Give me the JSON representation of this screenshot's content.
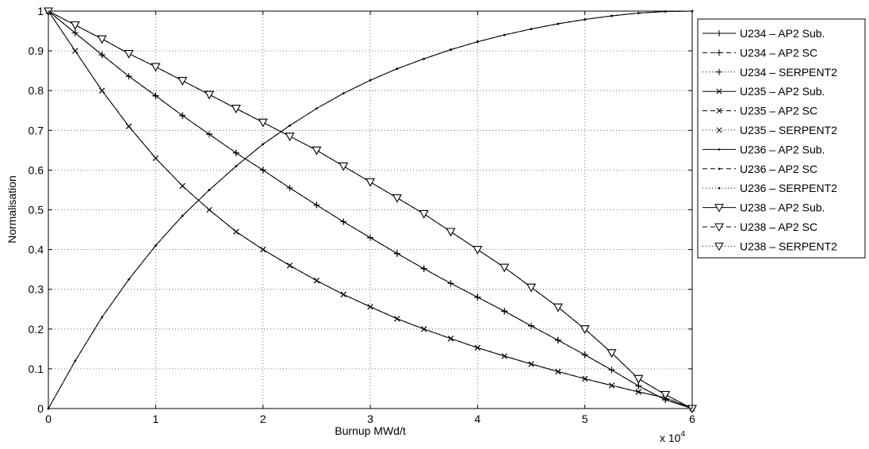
{
  "chart_data": {
    "type": "line",
    "title": "",
    "xlabel": "Burnup MWd/t",
    "ylabel": "Normalisation",
    "x_multiplier": "x 10",
    "x_multiplier_exp": "4",
    "xlim": [
      0,
      60000
    ],
    "ylim": [
      0,
      1
    ],
    "grid": true,
    "legend": "outside-right",
    "x_ticks": [
      0,
      10000,
      20000,
      30000,
      40000,
      50000,
      60000
    ],
    "x_tick_labels": [
      "0",
      "1",
      "2",
      "3",
      "4",
      "5",
      "6"
    ],
    "y_ticks": [
      0,
      0.1,
      0.2,
      0.3,
      0.4,
      0.5,
      0.6,
      0.7,
      0.8,
      0.9,
      1
    ],
    "y_tick_labels": [
      "0",
      "0.1",
      "0.2",
      "0.3",
      "0.4",
      "0.5",
      "0.6",
      "0.7",
      "0.8",
      "0.9",
      "1"
    ],
    "x": [
      0,
      2500,
      5000,
      7500,
      10000,
      12500,
      15000,
      17500,
      20000,
      22500,
      25000,
      27500,
      30000,
      32500,
      35000,
      37500,
      40000,
      42500,
      45000,
      47500,
      50000,
      52500,
      55000,
      57500,
      60000
    ],
    "series": [
      {
        "name": "U234 – AP2 Sub.",
        "marker": "plus",
        "dash": "solid",
        "values": [
          1.0,
          0.945,
          0.89,
          0.836,
          0.787,
          0.737,
          0.69,
          0.643,
          0.6,
          0.555,
          0.512,
          0.47,
          0.43,
          0.39,
          0.352,
          0.315,
          0.28,
          0.245,
          0.208,
          0.172,
          0.135,
          0.097,
          0.057,
          0.022,
          0.0
        ]
      },
      {
        "name": "U234 – AP2 SC",
        "marker": "plus",
        "dash": "dashed",
        "values": [
          1.0,
          0.945,
          0.89,
          0.836,
          0.787,
          0.737,
          0.69,
          0.643,
          0.6,
          0.555,
          0.512,
          0.47,
          0.43,
          0.39,
          0.352,
          0.315,
          0.28,
          0.245,
          0.208,
          0.172,
          0.135,
          0.097,
          0.057,
          0.022,
          0.0
        ]
      },
      {
        "name": "U234 – SERPENT2",
        "marker": "plus",
        "dash": "dotted",
        "values": [
          1.0,
          0.945,
          0.89,
          0.836,
          0.787,
          0.737,
          0.69,
          0.643,
          0.6,
          0.555,
          0.512,
          0.47,
          0.43,
          0.39,
          0.352,
          0.315,
          0.28,
          0.245,
          0.208,
          0.172,
          0.135,
          0.097,
          0.057,
          0.022,
          0.0
        ]
      },
      {
        "name": "U235 – AP2 Sub.",
        "marker": "x",
        "dash": "solid",
        "values": [
          1.0,
          0.9,
          0.8,
          0.71,
          0.63,
          0.56,
          0.5,
          0.445,
          0.4,
          0.36,
          0.322,
          0.287,
          0.256,
          0.226,
          0.2,
          0.176,
          0.153,
          0.132,
          0.112,
          0.093,
          0.075,
          0.058,
          0.042,
          0.027,
          0.0
        ]
      },
      {
        "name": "U235 – AP2 SC",
        "marker": "x",
        "dash": "dashed",
        "values": [
          1.0,
          0.9,
          0.8,
          0.71,
          0.63,
          0.56,
          0.5,
          0.445,
          0.4,
          0.36,
          0.322,
          0.287,
          0.256,
          0.226,
          0.2,
          0.176,
          0.153,
          0.132,
          0.112,
          0.093,
          0.075,
          0.058,
          0.042,
          0.027,
          0.0
        ]
      },
      {
        "name": "U235 – SERPENT2",
        "marker": "x",
        "dash": "dotted",
        "values": [
          1.0,
          0.9,
          0.8,
          0.71,
          0.63,
          0.56,
          0.5,
          0.445,
          0.4,
          0.36,
          0.322,
          0.287,
          0.256,
          0.226,
          0.2,
          0.176,
          0.153,
          0.132,
          0.112,
          0.093,
          0.075,
          0.058,
          0.042,
          0.027,
          0.0
        ]
      },
      {
        "name": "U236 – AP2 Sub.",
        "marker": "dot",
        "dash": "solid",
        "values": [
          0.0,
          0.12,
          0.23,
          0.325,
          0.41,
          0.485,
          0.55,
          0.61,
          0.665,
          0.712,
          0.755,
          0.793,
          0.826,
          0.855,
          0.88,
          0.903,
          0.923,
          0.94,
          0.955,
          0.968,
          0.979,
          0.988,
          0.995,
          0.999,
          1.0
        ]
      },
      {
        "name": "U236 – AP2 SC",
        "marker": "dot",
        "dash": "dashed",
        "values": [
          0.0,
          0.12,
          0.23,
          0.325,
          0.41,
          0.485,
          0.55,
          0.61,
          0.665,
          0.712,
          0.755,
          0.793,
          0.826,
          0.855,
          0.88,
          0.903,
          0.923,
          0.94,
          0.955,
          0.968,
          0.979,
          0.988,
          0.995,
          0.999,
          1.0
        ]
      },
      {
        "name": "U236 – SERPENT2",
        "marker": "dot",
        "dash": "dotted",
        "values": [
          0.0,
          0.12,
          0.23,
          0.325,
          0.41,
          0.485,
          0.55,
          0.61,
          0.665,
          0.712,
          0.755,
          0.793,
          0.826,
          0.855,
          0.88,
          0.903,
          0.923,
          0.94,
          0.955,
          0.968,
          0.979,
          0.988,
          0.995,
          0.999,
          1.0
        ]
      },
      {
        "name": "U238 – AP2 Sub.",
        "marker": "triangle-down",
        "dash": "solid",
        "values": [
          1.0,
          0.965,
          0.93,
          0.893,
          0.86,
          0.825,
          0.79,
          0.755,
          0.72,
          0.685,
          0.65,
          0.61,
          0.57,
          0.53,
          0.49,
          0.445,
          0.4,
          0.355,
          0.305,
          0.255,
          0.2,
          0.14,
          0.075,
          0.035,
          0.0
        ]
      },
      {
        "name": "U238 – AP2 SC",
        "marker": "triangle-down",
        "dash": "dashed",
        "values": [
          1.0,
          0.965,
          0.93,
          0.893,
          0.86,
          0.825,
          0.79,
          0.755,
          0.72,
          0.685,
          0.65,
          0.61,
          0.57,
          0.53,
          0.49,
          0.445,
          0.4,
          0.355,
          0.305,
          0.255,
          0.2,
          0.14,
          0.075,
          0.035,
          0.0
        ]
      },
      {
        "name": "U238 – SERPENT2",
        "marker": "triangle-down",
        "dash": "dotted",
        "values": [
          1.0,
          0.965,
          0.93,
          0.893,
          0.86,
          0.825,
          0.79,
          0.755,
          0.72,
          0.685,
          0.65,
          0.61,
          0.57,
          0.53,
          0.49,
          0.445,
          0.4,
          0.355,
          0.305,
          0.255,
          0.2,
          0.14,
          0.075,
          0.035,
          0.0
        ]
      }
    ]
  }
}
